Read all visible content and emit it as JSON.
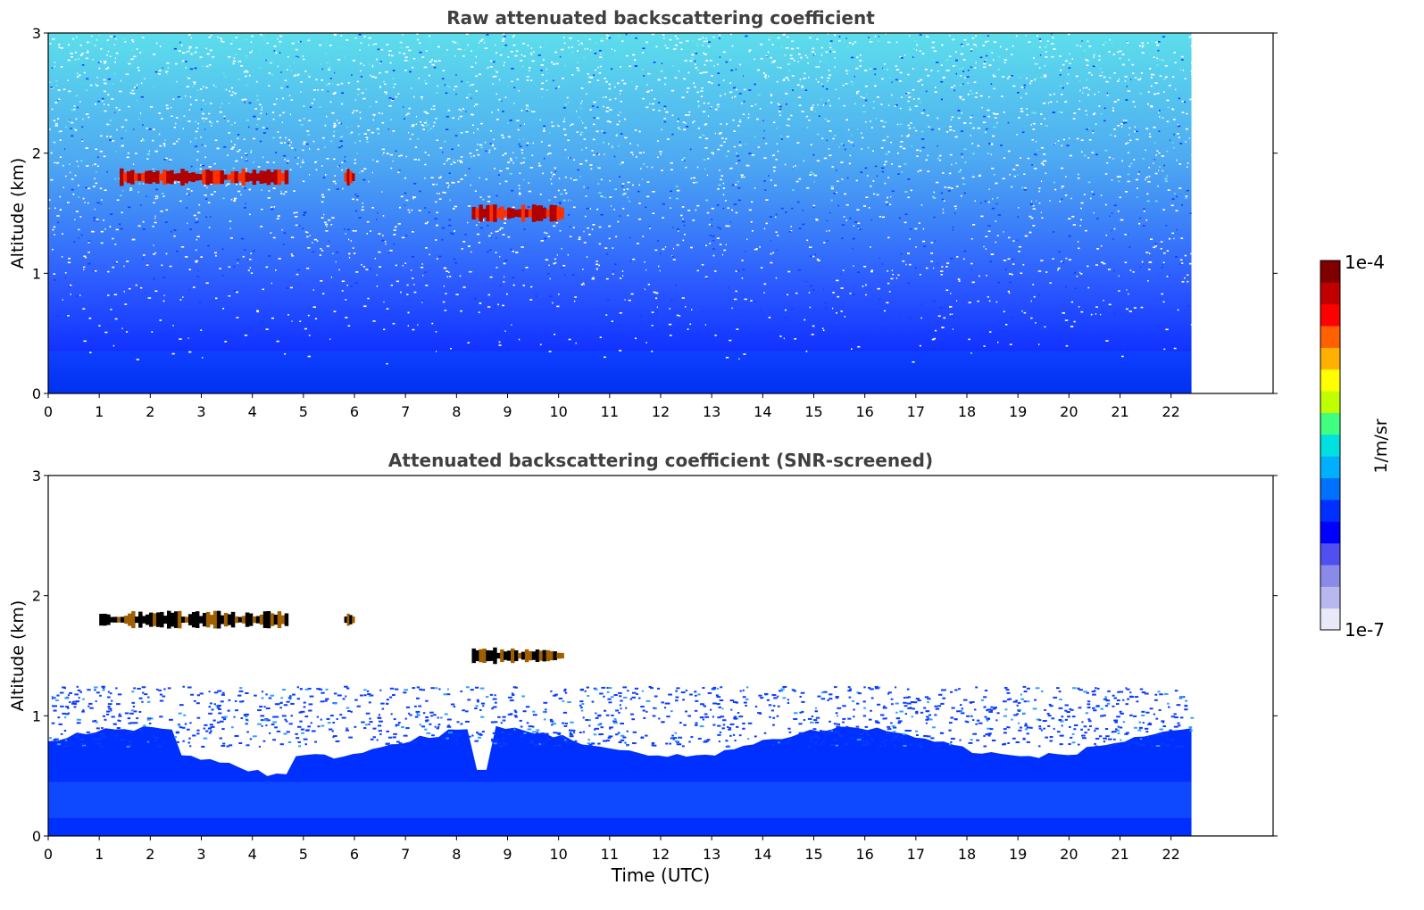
{
  "chart_data": [
    {
      "type": "heatmap",
      "title": "Raw attenuated backscattering coefficient",
      "ylabel": "Altitude (km)",
      "xlabel": "",
      "xlim": [
        0,
        24
      ],
      "ylim": [
        0,
        3
      ],
      "data_extent_x": [
        0,
        22.4
      ],
      "xticks": [
        "0",
        "1",
        "2",
        "3",
        "4",
        "5",
        "6",
        "7",
        "8",
        "9",
        "10",
        "11",
        "12",
        "13",
        "14",
        "15",
        "16",
        "17",
        "18",
        "19",
        "20",
        "21",
        "22"
      ],
      "yticks": [
        "0",
        "1",
        "2",
        "3"
      ],
      "features": [
        {
          "kind": "cloud",
          "t_start": 1.4,
          "t_end": 4.7,
          "altitude_km": 1.8
        },
        {
          "kind": "cloud",
          "t_start": 5.8,
          "t_end": 6.0,
          "altitude_km": 1.8
        },
        {
          "kind": "cloud",
          "t_start": 8.3,
          "t_end": 10.1,
          "altitude_km": 1.5
        }
      ]
    },
    {
      "type": "heatmap",
      "title": "Attenuated backscattering coefficient (SNR-screened)",
      "ylabel": "Altitude (km)",
      "xlabel": "Time (UTC)",
      "xlim": [
        0,
        24
      ],
      "ylim": [
        0,
        3
      ],
      "data_extent_x": [
        0,
        22.4
      ],
      "xticks": [
        "0",
        "1",
        "2",
        "3",
        "4",
        "5",
        "6",
        "7",
        "8",
        "9",
        "10",
        "11",
        "12",
        "13",
        "14",
        "15",
        "16",
        "17",
        "18",
        "19",
        "20",
        "21",
        "22"
      ],
      "yticks": [
        "0",
        "1",
        "2",
        "3"
      ],
      "features": [
        {
          "kind": "cloud",
          "t_start": 1.0,
          "t_end": 4.7,
          "altitude_km": 1.8
        },
        {
          "kind": "cloud",
          "t_start": 5.8,
          "t_end": 6.0,
          "altitude_km": 1.8
        },
        {
          "kind": "cloud",
          "t_start": 8.3,
          "t_end": 10.1,
          "altitude_km": 1.5
        }
      ]
    }
  ],
  "colorbar": {
    "label": "1/m/sr",
    "max_label": "1e-4",
    "min_label": "1e-7",
    "colors": [
      "#e8e8f8",
      "#b8b8ee",
      "#8a8ae8",
      "#5050f0",
      "#0000ff",
      "#0030ff",
      "#0070ff",
      "#00b0ff",
      "#00e0e0",
      "#40ff80",
      "#c0ff00",
      "#ffff00",
      "#ffb000",
      "#ff6000",
      "#ff0000",
      "#c00000",
      "#800000"
    ]
  }
}
